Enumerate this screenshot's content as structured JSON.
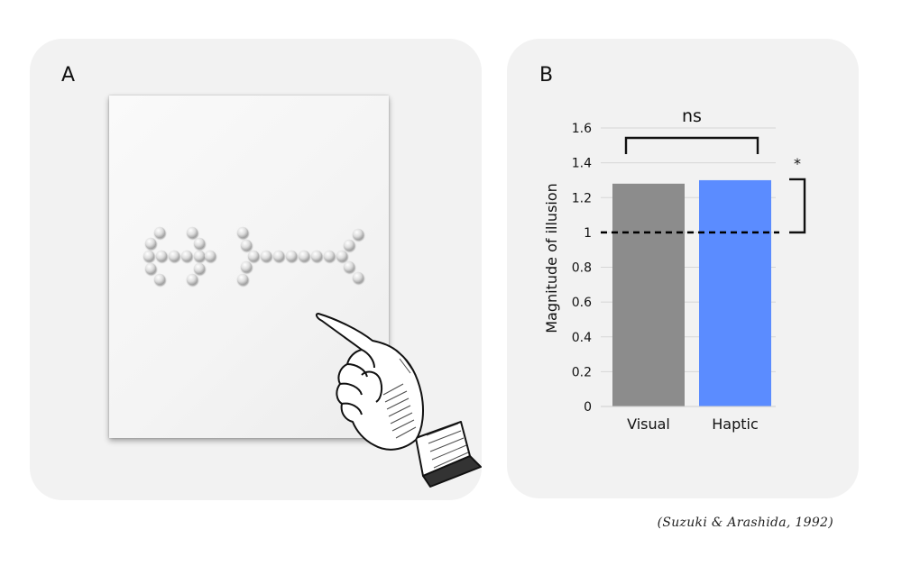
{
  "panels": {
    "a": {
      "label": "A"
    },
    "b": {
      "label": "B"
    }
  },
  "stimulus": {
    "description_icons": [
      "dot-arrow-inward-fins-icon",
      "dot-arrow-outward-fins-icon"
    ],
    "pointing_hand_icon": "pointing-hand-icon"
  },
  "chart_data": {
    "type": "bar",
    "categories": [
      "Visual",
      "Haptic"
    ],
    "values": [
      1.28,
      1.3
    ],
    "colors": [
      "#8c8c8c",
      "#5b8cff"
    ],
    "ylabel": "Magnitude of illusion",
    "xlabel": "",
    "ylim": [
      0,
      1.6
    ],
    "yticks": [
      {
        "value": 0,
        "label": "0"
      },
      {
        "value": 0.2,
        "label": "0.2"
      },
      {
        "value": 0.4,
        "label": "0.4"
      },
      {
        "value": 0.6,
        "label": "0.6"
      },
      {
        "value": 0.8,
        "label": "0.8"
      },
      {
        "value": 1,
        "label": "1"
      },
      {
        "value": 1.2,
        "label": "1.2"
      },
      {
        "value": 1.4,
        "label": "1.4"
      },
      {
        "value": 1.6,
        "label": "1.6"
      }
    ],
    "reference_line": 1,
    "grid": true,
    "annotations": {
      "between_bars": "ns",
      "vs_reference": "*"
    }
  },
  "citation": "(Suzuki & Arashida, 1992)"
}
